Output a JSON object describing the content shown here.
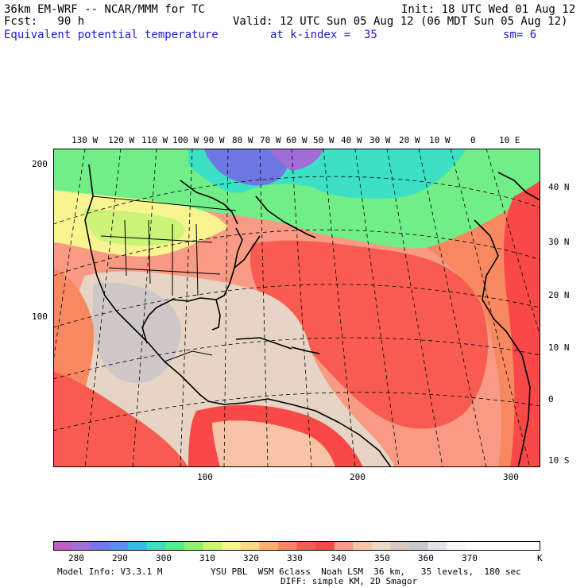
{
  "header": {
    "title_left": "36km EM-WRF -- NCAR/MMM for TC",
    "init": "Init: 18 UTC Wed 01 Aug 12",
    "fcst": "Fcst:   90 h",
    "valid": "Valid: 12 UTC Sun 05 Aug 12 (06 MDT Sun 05 Aug 12)",
    "field": "Equivalent potential temperature",
    "level": "at k-index =  35",
    "smooth": "sm= 6"
  },
  "top_axis": [
    "130 W",
    "120 W",
    "110 W",
    "100 W",
    "90 W",
    "80 W",
    "70 W",
    "60 W",
    "50 W",
    "40 W",
    "30 W",
    "20 W",
    "10 W",
    "0",
    "10 E"
  ],
  "right_axis": [
    "40 N",
    "30 N",
    "20 N",
    "10 N",
    "0",
    "10 S"
  ],
  "left_axis": [
    "200",
    "100"
  ],
  "bottom_axis": [
    "100",
    "200",
    "300"
  ],
  "colorbar": {
    "labels": [
      "280",
      "290",
      "300",
      "310",
      "320",
      "330",
      "340",
      "350",
      "360",
      "370"
    ],
    "unit": "K",
    "colors": [
      "#c45cc8",
      "#a070d8",
      "#7878e6",
      "#5890ea",
      "#3cb8e8",
      "#38e0c0",
      "#54ec8c",
      "#90f070",
      "#ccf478",
      "#f8f490",
      "#fcd884",
      "#fcb070",
      "#f88860",
      "#f85c50",
      "#f84848",
      "#f89a84",
      "#f8c4a8",
      "#ecd8c4",
      "#d8c8c0",
      "#c8c8cc",
      "#e4e4e8",
      "#f8f8f8",
      "#ffffff",
      "#ffffff",
      "#ffffff",
      "#ffffff"
    ]
  },
  "footer": {
    "model": "Model Info: V3.3.1 M",
    "physics": "YSU PBL  WSM 6class  Noah LSM  36 km,   35 levels,  180 sec",
    "diff": "DIFF: simple KM, 2D Smagor"
  }
}
